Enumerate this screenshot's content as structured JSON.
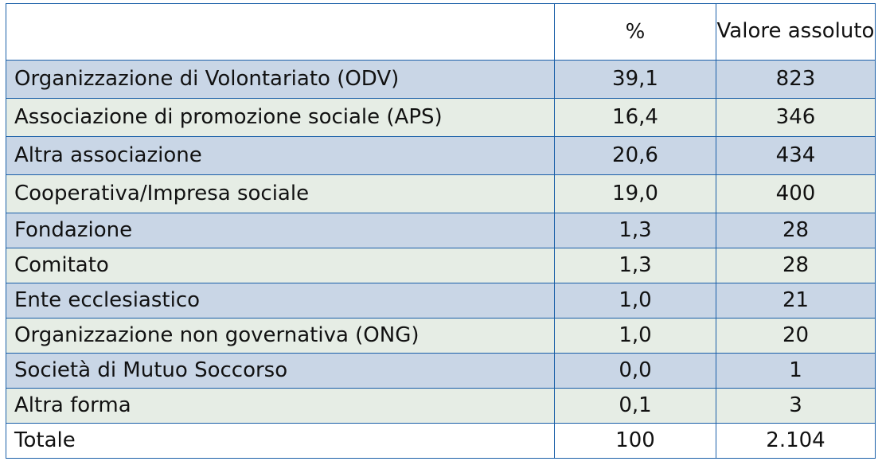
{
  "table": {
    "headers": [
      "",
      "%",
      "Valore assoluto"
    ],
    "rows": [
      {
        "label": "Organizzazione di Volontariato (ODV)",
        "percent": "39,1",
        "value": "823"
      },
      {
        "label": "Associazione di promozione sociale (APS)",
        "percent": "16,4",
        "value": "346"
      },
      {
        "label": "Altra associazione",
        "percent": "20,6",
        "value": "434"
      },
      {
        "label": "Cooperativa/Impresa sociale",
        "percent": "19,0",
        "value": "400"
      },
      {
        "label": "Fondazione",
        "percent": "1,3",
        "value": "28"
      },
      {
        "label": "Comitato",
        "percent": "1,3",
        "value": "28"
      },
      {
        "label": "Ente ecclesiastico",
        "percent": "1,0",
        "value": "21"
      },
      {
        "label": "Organizzazione non governativa (ONG)",
        "percent": "1,0",
        "value": "20"
      },
      {
        "label": "Società di Mutuo Soccorso",
        "percent": "0,0",
        "value": "1"
      },
      {
        "label": "Altra forma",
        "percent": "0,1",
        "value": "3"
      },
      {
        "label": "Totale",
        "percent": "100",
        "value": "2.104"
      }
    ],
    "colors": {
      "border": "#1a5fa8",
      "row_blue": "#c9d6e6",
      "row_green": "#e6ede5",
      "header_bg": "#ffffff"
    }
  }
}
